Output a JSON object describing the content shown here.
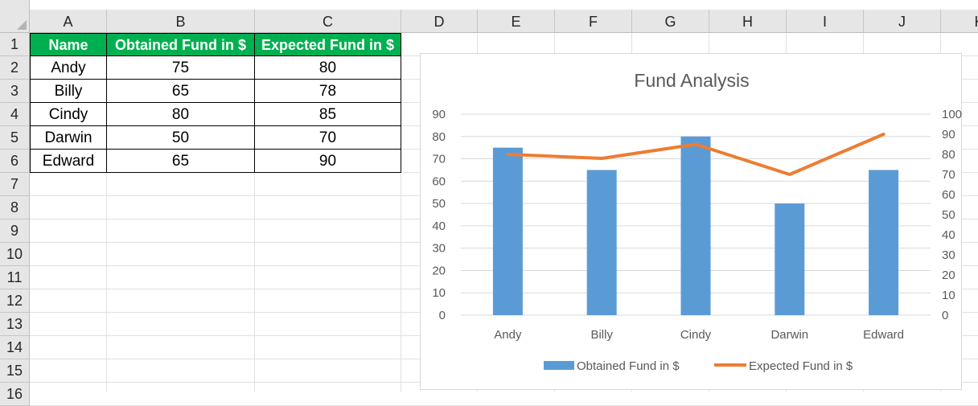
{
  "sheet": {
    "columns": [
      "A",
      "B",
      "C",
      "D",
      "E",
      "F",
      "G",
      "H",
      "I",
      "J",
      "K"
    ],
    "rows": [
      "1",
      "2",
      "3",
      "4",
      "5",
      "6",
      "7",
      "8",
      "9",
      "10",
      "11",
      "12",
      "13",
      "14",
      "15",
      "16"
    ]
  },
  "table": {
    "headers": [
      "Name",
      "Obtained Fund in $",
      "Expected Fund in $"
    ],
    "rows": [
      [
        "Andy",
        "75",
        "80"
      ],
      [
        "Billy",
        "65",
        "78"
      ],
      [
        "Cindy",
        "80",
        "85"
      ],
      [
        "Darwin",
        "50",
        "70"
      ],
      [
        "Edward",
        "65",
        "90"
      ]
    ]
  },
  "colors": {
    "header_fill": "#00b050",
    "bar": "#5b9bd5",
    "line": "#ed7d31"
  },
  "chart_data": {
    "type": "bar",
    "title": "Fund Analysis",
    "categories": [
      "Andy",
      "Billy",
      "Cindy",
      "Darwin",
      "Edward"
    ],
    "series": [
      {
        "name": "Obtained Fund in $",
        "type": "bar",
        "axis": "primary",
        "values": [
          75,
          65,
          80,
          50,
          65
        ]
      },
      {
        "name": "Expected Fund in $",
        "type": "line",
        "axis": "secondary",
        "values": [
          80,
          78,
          85,
          70,
          90
        ]
      }
    ],
    "ylim": [
      0,
      90
    ],
    "y_ticks": [
      "0",
      "10",
      "20",
      "30",
      "40",
      "50",
      "60",
      "70",
      "80",
      "90"
    ],
    "y2lim": [
      0,
      100
    ],
    "y2_ticks": [
      "0",
      "10",
      "20",
      "30",
      "40",
      "50",
      "60",
      "70",
      "80",
      "90",
      "100"
    ],
    "grid": true,
    "legend": "bottom"
  }
}
